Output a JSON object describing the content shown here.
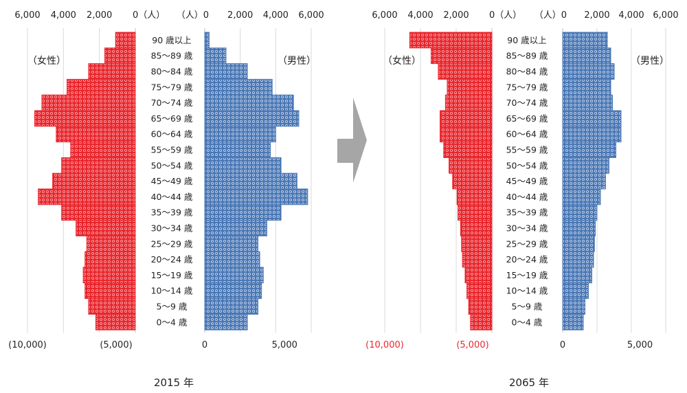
{
  "chart_data": [
    {
      "type": "bar",
      "title": "2015 年",
      "categories": [
        "90 歳以上",
        "85～89 歳",
        "80～84 歳",
        "75～79 歳",
        "70～74 歳",
        "65～69 歳",
        "60～64 歳",
        "55～59 歳",
        "50～54 歳",
        "45～49 歳",
        "40～44 歳",
        "35～39 歳",
        "30～34 歳",
        "25～29 歳",
        "20～24 歳",
        "15～19 歳",
        "10～14 歳",
        "5～9 歳",
        "0～4 歳"
      ],
      "series": [
        {
          "name": "（女性）",
          "values": [
            1100,
            1700,
            2600,
            3800,
            5200,
            5600,
            4400,
            3600,
            4100,
            4600,
            5400,
            4100,
            3300,
            2700,
            2800,
            2900,
            2800,
            2600,
            2200
          ]
        },
        {
          "name": "（男性）",
          "values": [
            250,
            1200,
            2400,
            3800,
            5000,
            5300,
            4000,
            3700,
            4300,
            5200,
            5800,
            4300,
            3500,
            3000,
            3100,
            3300,
            3200,
            3000,
            2400
          ]
        }
      ],
      "left_top_ticks": [
        "6,000",
        "4,000",
        "2,000",
        "0（人）"
      ],
      "right_top_ticks": [
        "（人）0",
        "2,000",
        "4,000",
        "6,000"
      ],
      "left_bottom_ticks": [
        "(10,000)",
        "(5,000)"
      ],
      "right_bottom_ticks": [
        "0",
        "5,000"
      ],
      "xlim": [
        0,
        6000
      ]
    },
    {
      "type": "bar",
      "title": "2065 年",
      "categories": [
        "90 歳以上",
        "85～89 歳",
        "80～84 歳",
        "75～79 歳",
        "70～74 歳",
        "65～69 歳",
        "60～64 歳",
        "55～59 歳",
        "50～54 歳",
        "45～49 歳",
        "40～44 歳",
        "35～39 歳",
        "30～34 歳",
        "25～29 歳",
        "20～24 歳",
        "15～19 歳",
        "10～14 歳",
        "5～9 歳",
        "0～4 歳"
      ],
      "series": [
        {
          "name": "（女性）",
          "values": [
            4600,
            3400,
            3000,
            2500,
            2600,
            2900,
            2900,
            2700,
            2400,
            2200,
            1950,
            1900,
            1750,
            1700,
            1650,
            1500,
            1400,
            1300,
            1200
          ]
        },
        {
          "name": "（男性）",
          "values": [
            2600,
            2800,
            3000,
            2800,
            2900,
            3400,
            3400,
            3100,
            2700,
            2500,
            2200,
            2000,
            1900,
            1850,
            1800,
            1700,
            1500,
            1300,
            1200
          ]
        }
      ],
      "left_top_ticks": [
        "6,000",
        "4,000",
        "2,000",
        "0（人）"
      ],
      "right_top_ticks": [
        "（人）0",
        "2,000",
        "4,000",
        "6,000"
      ],
      "left_bottom_ticks": [
        "(10,000)",
        "(5,000)"
      ],
      "right_bottom_ticks": [
        "0",
        "5,000"
      ],
      "xlim": [
        0,
        6000
      ]
    }
  ],
  "colors": {
    "female": "#e8262d",
    "female_pattern": "#f6a4a7",
    "male": "#4a77b4",
    "male_pattern": "#c3d3ea",
    "arrow": "#a6a6a6",
    "red_labels": "#e8262d"
  },
  "arrow_icon": "right-arrow-icon"
}
